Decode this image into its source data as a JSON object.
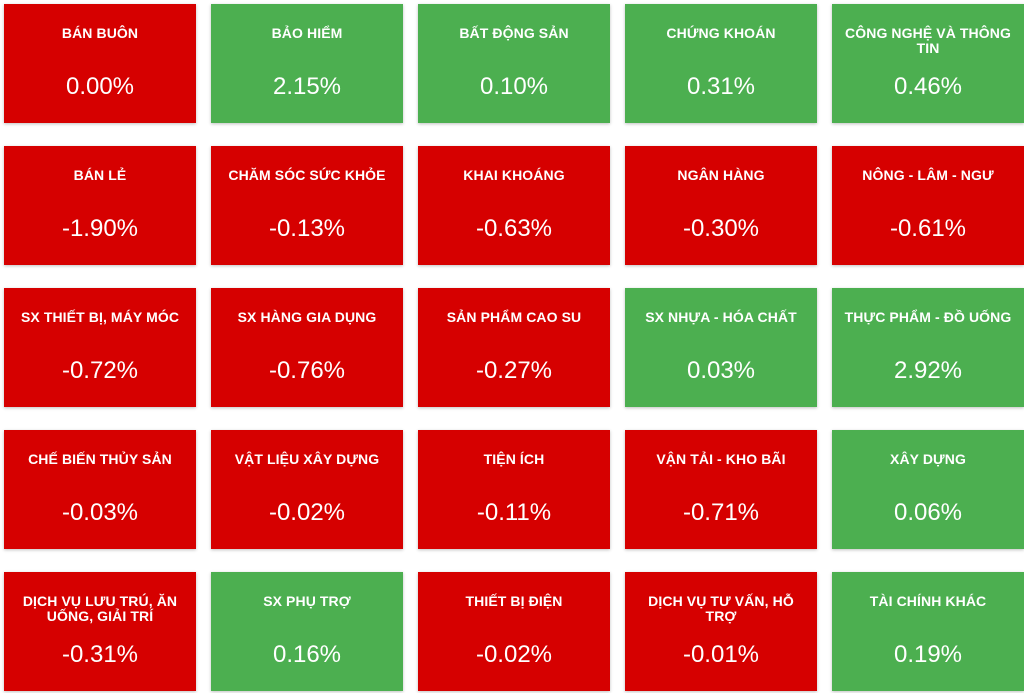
{
  "colors": {
    "negative": "#d60000",
    "positive": "#4caf50",
    "text": "#ffffff"
  },
  "sectors": [
    {
      "name": "BÁN BUÔN",
      "value": "0.00%",
      "status": "down"
    },
    {
      "name": "BẢO HIỂM",
      "value": "2.15%",
      "status": "up"
    },
    {
      "name": "BẤT ĐỘNG SẢN",
      "value": "0.10%",
      "status": "up"
    },
    {
      "name": "CHỨNG KHOÁN",
      "value": "0.31%",
      "status": "up"
    },
    {
      "name": "CÔNG NGHỆ VÀ THÔNG TIN",
      "value": "0.46%",
      "status": "up"
    },
    {
      "name": "BÁN LẺ",
      "value": "-1.90%",
      "status": "down"
    },
    {
      "name": "CHĂM SÓC SỨC KHỎE",
      "value": "-0.13%",
      "status": "down"
    },
    {
      "name": "KHAI KHOÁNG",
      "value": "-0.63%",
      "status": "down"
    },
    {
      "name": "NGÂN HÀNG",
      "value": "-0.30%",
      "status": "down"
    },
    {
      "name": "NÔNG - LÂM - NGƯ",
      "value": "-0.61%",
      "status": "down"
    },
    {
      "name": "SX THIẾT BỊ, MÁY MÓC",
      "value": "-0.72%",
      "status": "down"
    },
    {
      "name": "SX HÀNG GIA DỤNG",
      "value": "-0.76%",
      "status": "down"
    },
    {
      "name": "SẢN PHẨM CAO SU",
      "value": "-0.27%",
      "status": "down"
    },
    {
      "name": "SX NHỰA - HÓA CHẤT",
      "value": "0.03%",
      "status": "up"
    },
    {
      "name": "THỰC PHẨM - ĐỒ UỐNG",
      "value": "2.92%",
      "status": "up"
    },
    {
      "name": "CHẾ BIẾN THỦY SẢN",
      "value": "-0.03%",
      "status": "down"
    },
    {
      "name": "VẬT LIỆU XÂY DỰNG",
      "value": "-0.02%",
      "status": "down"
    },
    {
      "name": "TIỆN ÍCH",
      "value": "-0.11%",
      "status": "down"
    },
    {
      "name": "VẬN TẢI - KHO BÃI",
      "value": "-0.71%",
      "status": "down"
    },
    {
      "name": "XÂY DỰNG",
      "value": "0.06%",
      "status": "up"
    },
    {
      "name": "DỊCH VỤ LƯU TRÚ, ĂN UỐNG, GIẢI TRÍ",
      "value": "-0.31%",
      "status": "down"
    },
    {
      "name": "SX PHỤ TRỢ",
      "value": "0.16%",
      "status": "up"
    },
    {
      "name": "THIẾT BỊ ĐIỆN",
      "value": "-0.02%",
      "status": "down"
    },
    {
      "name": "DỊCH VỤ TƯ VẤN, HỖ TRỢ",
      "value": "-0.01%",
      "status": "down"
    },
    {
      "name": "TÀI CHÍNH KHÁC",
      "value": "0.19%",
      "status": "up"
    }
  ]
}
